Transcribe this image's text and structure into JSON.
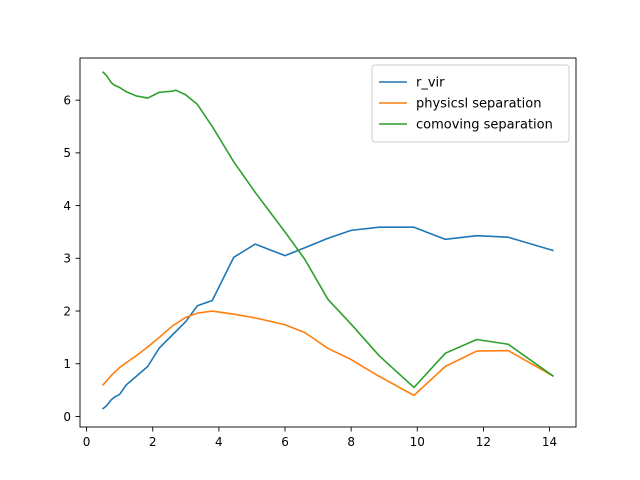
{
  "chart_data": {
    "type": "line",
    "title": "",
    "xlabel": "",
    "ylabel": "",
    "xlim": [
      -0.2,
      14.8
    ],
    "ylim": [
      -0.2,
      6.8
    ],
    "xticks": [
      0,
      2,
      4,
      6,
      8,
      10,
      12,
      14
    ],
    "yticks": [
      0,
      1,
      2,
      3,
      4,
      5,
      6
    ],
    "grid": false,
    "legend": "top-right",
    "series": [
      {
        "name": "r_vir",
        "color": "#1f77b4",
        "x": [
          0.5,
          0.6,
          0.75,
          0.85,
          1.0,
          1.2,
          1.5,
          1.85,
          2.2,
          2.6,
          3.0,
          3.35,
          3.8,
          4.45,
          5.1,
          6.0,
          6.6,
          7.3,
          8.0,
          8.85,
          9.9,
          10.85,
          11.8,
          12.75,
          14.1
        ],
        "y": [
          0.15,
          0.2,
          0.32,
          0.37,
          0.42,
          0.6,
          0.76,
          0.95,
          1.3,
          1.55,
          1.8,
          2.1,
          2.2,
          3.02,
          3.27,
          3.05,
          3.2,
          3.38,
          3.53,
          3.59,
          3.59,
          3.36,
          3.43,
          3.4,
          3.15
        ]
      },
      {
        "name": "physicsl separation",
        "color": "#ff7f0e",
        "x": [
          0.5,
          0.75,
          1.0,
          1.2,
          1.5,
          1.85,
          2.2,
          2.6,
          3.0,
          3.35,
          3.8,
          4.45,
          5.1,
          6.0,
          6.6,
          7.3,
          8.0,
          8.85,
          9.9,
          10.85,
          11.8,
          12.75,
          14.1
        ],
        "y": [
          0.6,
          0.78,
          0.93,
          1.02,
          1.15,
          1.32,
          1.5,
          1.72,
          1.88,
          1.96,
          2.0,
          1.94,
          1.87,
          1.74,
          1.59,
          1.29,
          1.08,
          0.76,
          0.4,
          0.95,
          1.24,
          1.25,
          0.77
        ]
      },
      {
        "name": "comoving separation",
        "color": "#2ca02c",
        "x": [
          0.5,
          0.6,
          0.75,
          0.85,
          1.0,
          1.2,
          1.5,
          1.85,
          2.2,
          2.6,
          2.7,
          3.0,
          3.35,
          3.8,
          4.45,
          5.1,
          6.0,
          6.6,
          7.3,
          8.0,
          8.85,
          9.9,
          10.85,
          11.8,
          12.75,
          14.1
        ],
        "y": [
          6.53,
          6.47,
          6.33,
          6.28,
          6.24,
          6.16,
          6.08,
          6.04,
          6.15,
          6.17,
          6.19,
          6.1,
          5.92,
          5.5,
          4.83,
          4.25,
          3.5,
          2.98,
          2.22,
          1.75,
          1.15,
          0.55,
          1.2,
          1.46,
          1.37,
          0.77
        ]
      }
    ]
  }
}
